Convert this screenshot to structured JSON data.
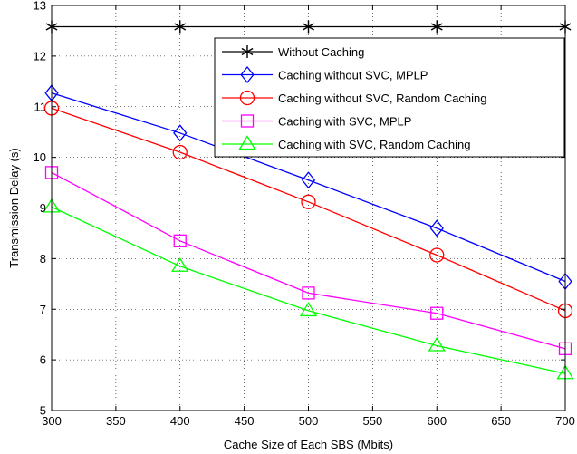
{
  "chart_data": {
    "type": "line",
    "xlabel": "Cache Size of Each SBS (Mbits)",
    "ylabel": "Transmission Delay (s)",
    "xlim": [
      300,
      700
    ],
    "ylim": [
      5,
      13
    ],
    "x_ticks": [
      300,
      350,
      400,
      450,
      500,
      550,
      600,
      650,
      700
    ],
    "y_ticks": [
      5,
      6,
      7,
      8,
      9,
      10,
      11,
      12,
      13
    ],
    "grid": true,
    "legend_position": "top-right",
    "x": [
      300,
      400,
      500,
      600,
      700
    ],
    "series": [
      {
        "name": "Without Caching",
        "color": "#000000",
        "marker": "star",
        "values": [
          12.58,
          12.58,
          12.58,
          12.58,
          12.58
        ]
      },
      {
        "name": "Caching without SVC, MPLP",
        "color": "#0000ff",
        "marker": "diamond",
        "values": [
          11.27,
          10.48,
          9.55,
          8.6,
          7.55
        ]
      },
      {
        "name": "Caching without SVC, Random Caching",
        "color": "#ff0000",
        "marker": "circle",
        "values": [
          10.97,
          10.1,
          9.12,
          8.07,
          6.97
        ]
      },
      {
        "name": "Caching with SVC, MPLP",
        "color": "#ff00ff",
        "marker": "square",
        "values": [
          9.7,
          8.35,
          7.32,
          6.92,
          6.22
        ]
      },
      {
        "name": "Caching with SVC, Random Caching",
        "color": "#00ff00",
        "marker": "triangle",
        "values": [
          9.02,
          7.85,
          6.97,
          6.28,
          5.73
        ]
      }
    ]
  }
}
